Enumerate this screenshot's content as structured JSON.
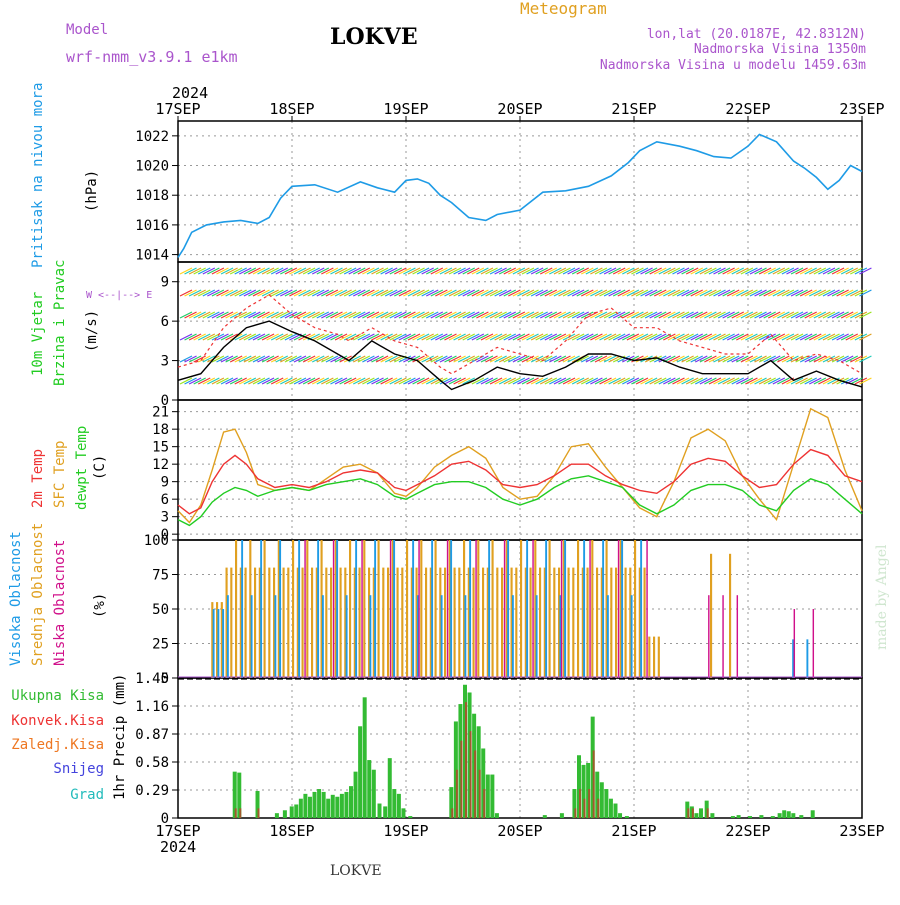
{
  "header": {
    "model_label": "Model",
    "model_name": "wrf-nmm_v3.9.1 e1km",
    "station": "LOKVE",
    "title": "Meteogram",
    "coords": "lon,lat (20.0187E, 42.8312N)",
    "altitude": "Nadmorska Visina 1350m",
    "model_altitude": "Nadmorska Visina u modelu 1459.63m",
    "year": "2024",
    "footer_station": "LOKVE",
    "credit": "made by Angel"
  },
  "date_ticks": [
    "17SEP",
    "18SEP",
    "19SEP",
    "20SEP",
    "21SEP",
    "22SEP",
    "23SEP"
  ],
  "colors": {
    "pressure": "#1e9be6",
    "wind_label": "#22cc22",
    "wind_speed_line": "#000000",
    "gust": "#ee3333",
    "temp2m": "#ee3333",
    "sfc": "#e0a020",
    "dewpt": "#22cc22",
    "cloud_high": "#1e9be6",
    "cloud_mid": "#e0a020",
    "cloud_low": "#d0108a",
    "precip_total": "#33bb33",
    "precip_conv": "#ee3333",
    "precip_frz": "#ee7722",
    "snow": "#4444dd",
    "hail": "#22bbbb",
    "purple_text": "#aa55cc"
  },
  "labels": {
    "pressure": {
      "name": "Pritisak na nivou mora",
      "unit": "(hPa)"
    },
    "wind": {
      "name1": "10m Vjetar",
      "name2": "Brzina i Pravac",
      "unit": "(m/s)",
      "compass": "W <--|--> E"
    },
    "temp": {
      "name1": "2m Temp",
      "name2": "SFC Temp",
      "name3": "dewpt Temp",
      "unit": "(C)"
    },
    "cloud": {
      "name1": "Visoka Oblacnost",
      "name2": "Srednja Oblacnost",
      "name3": "Niska Oblacnost",
      "unit": "(%)"
    },
    "precip": {
      "total": "Ukupna Kisa",
      "conv": "Konvek.Kisa",
      "frz": "Zaledj.Kisa",
      "snow": "Snijeg",
      "hail": "Grad",
      "unit": "1hr Precip (mm)"
    }
  },
  "chart_data": [
    {
      "type": "line",
      "panel": "pressure",
      "ylabel": "Pritisak na nivou mora (hPa)",
      "ylim": [
        1013.5,
        1023
      ],
      "yticks": [
        "1014",
        "1016",
        "1018",
        "1020",
        "1022"
      ],
      "x_days": [
        0,
        0.05,
        0.12,
        0.25,
        0.4,
        0.55,
        0.7,
        0.8,
        0.9,
        1.0,
        1.2,
        1.4,
        1.6,
        1.75,
        1.9,
        2.0,
        2.1,
        2.2,
        2.3,
        2.4,
        2.55,
        2.7,
        2.8,
        3.0,
        3.2,
        3.4,
        3.6,
        3.8,
        3.95,
        4.05,
        4.2,
        4.4,
        4.55,
        4.7,
        4.85,
        5.0,
        5.1,
        5.25,
        5.4,
        5.5,
        5.6,
        5.7,
        5.8,
        5.9,
        6.0
      ],
      "series": [
        {
          "values": [
            1013.8,
            1014.4,
            1015.5,
            1016.0,
            1016.2,
            1016.3,
            1016.1,
            1016.5,
            1017.8,
            1018.6,
            1018.7,
            1018.2,
            1018.9,
            1018.5,
            1018.2,
            1019.0,
            1019.1,
            1018.8,
            1018.0,
            1017.5,
            1016.5,
            1016.3,
            1016.7,
            1017.0,
            1018.2,
            1018.3,
            1018.6,
            1019.3,
            1020.2,
            1021.0,
            1021.6,
            1021.3,
            1021.0,
            1020.6,
            1020.5,
            1021.3,
            1022.1,
            1021.6,
            1020.3,
            1019.8,
            1019.2,
            1018.4,
            1019.0,
            1020.0,
            1019.6
          ]
        }
      ]
    },
    {
      "type": "line",
      "panel": "wind",
      "ylabel": "10m Vjetar Brzina i Pravac (m/s)",
      "ylim": [
        0,
        10.5
      ],
      "yticks": [
        "0",
        "3",
        "6",
        "9"
      ],
      "x_days": [
        0,
        0.2,
        0.4,
        0.6,
        0.8,
        1.0,
        1.2,
        1.4,
        1.5,
        1.7,
        1.9,
        2.1,
        2.3,
        2.4,
        2.6,
        2.8,
        3.0,
        3.2,
        3.4,
        3.6,
        3.8,
        4.0,
        4.2,
        4.4,
        4.6,
        4.8,
        5.0,
        5.2,
        5.4,
        5.6,
        5.8,
        6.0
      ],
      "series": [
        {
          "values": [
            1.5,
            2.0,
            4.0,
            5.5,
            6.0,
            5.2,
            4.5,
            3.5,
            3.0,
            4.5,
            3.5,
            3.0,
            1.5,
            0.8,
            1.5,
            2.5,
            2.0,
            1.8,
            2.5,
            3.5,
            3.5,
            3.0,
            3.2,
            2.5,
            2.0,
            2.0,
            2.0,
            3.0,
            1.5,
            2.2,
            1.5,
            1.0
          ]
        },
        {
          "values": [
            2.5,
            3.0,
            5.5,
            7.0,
            8.0,
            6.5,
            5.5,
            5.0,
            4.5,
            5.5,
            4.5,
            4.0,
            2.5,
            2.0,
            3.0,
            4.0,
            3.5,
            3.0,
            4.5,
            6.5,
            7.0,
            5.5,
            5.5,
            4.5,
            4.0,
            3.5,
            3.5,
            5.0,
            3.0,
            3.5,
            3.0,
            2.0
          ]
        }
      ]
    },
    {
      "type": "line",
      "panel": "temperature",
      "ylabel": "(C)",
      "ylim": [
        -1,
        23
      ],
      "yticks": [
        "0",
        "3",
        "6",
        "9",
        "12",
        "15",
        "18",
        "21"
      ],
      "x_days": [
        0,
        0.1,
        0.2,
        0.3,
        0.4,
        0.5,
        0.6,
        0.7,
        0.85,
        1.0,
        1.15,
        1.3,
        1.45,
        1.6,
        1.75,
        1.9,
        2.0,
        2.1,
        2.25,
        2.4,
        2.55,
        2.7,
        2.85,
        3.0,
        3.15,
        3.3,
        3.45,
        3.6,
        3.75,
        3.9,
        4.05,
        4.2,
        4.35,
        4.5,
        4.65,
        4.8,
        4.95,
        5.1,
        5.25,
        5.4,
        5.55,
        5.7,
        5.85,
        6.0
      ],
      "series": [
        {
          "values": [
            5.0,
            3.5,
            4.5,
            9.0,
            12.0,
            13.5,
            12.0,
            9.5,
            8.0,
            8.5,
            8.0,
            9.0,
            10.5,
            11.0,
            10.5,
            8.0,
            7.5,
            8.5,
            10.0,
            12.0,
            12.5,
            11.0,
            8.5,
            8.0,
            8.5,
            10.0,
            12.0,
            12.0,
            10.0,
            8.5,
            7.5,
            7.0,
            9.0,
            12.0,
            13.0,
            12.5,
            10.0,
            8.0,
            8.5,
            12.0,
            14.5,
            13.5,
            10.0,
            9.0
          ]
        },
        {
          "values": [
            4.0,
            2.0,
            5.0,
            11.0,
            17.5,
            18.0,
            14.0,
            8.5,
            7.5,
            8.0,
            7.5,
            9.5,
            11.5,
            12.0,
            10.5,
            7.0,
            6.5,
            8.0,
            11.5,
            13.5,
            15.0,
            13.0,
            8.0,
            6.0,
            6.5,
            10.0,
            15.0,
            15.5,
            11.5,
            8.0,
            4.5,
            3.0,
            9.0,
            16.5,
            18.0,
            16.0,
            10.0,
            6.0,
            2.5,
            12.0,
            21.5,
            20.0,
            11.0,
            4.0
          ]
        },
        {
          "values": [
            2.5,
            1.5,
            3.0,
            5.5,
            7.0,
            8.0,
            7.5,
            6.5,
            7.5,
            8.0,
            7.5,
            8.5,
            9.0,
            9.5,
            8.5,
            6.5,
            6.0,
            7.0,
            8.5,
            9.0,
            9.0,
            8.0,
            6.0,
            5.0,
            6.0,
            8.0,
            9.5,
            10.0,
            9.0,
            8.0,
            5.0,
            3.5,
            5.0,
            7.5,
            8.5,
            8.5,
            7.5,
            5.0,
            4.0,
            7.5,
            9.5,
            8.5,
            6.0,
            3.5
          ]
        }
      ]
    },
    {
      "type": "bar",
      "panel": "cloud",
      "ylabel": "(%)",
      "ylim": [
        0,
        100
      ],
      "yticks": [
        "0",
        "25",
        "50",
        "75",
        "100"
      ],
      "series": [
        {
          "values": []
        },
        {
          "values": []
        },
        {
          "values": []
        }
      ]
    },
    {
      "type": "bar",
      "panel": "precipitation",
      "ylabel": "1hr Precip (mm)",
      "ylim": [
        0,
        1.45
      ],
      "yticks": [
        "0",
        "0.29",
        "0.58",
        "0.87",
        "1.16",
        "1.45"
      ],
      "bars": [
        [
          0.48,
          0.48,
          0.1
        ],
        [
          0.52,
          0.47,
          0.1
        ],
        [
          0.68,
          0.28,
          0.1
        ],
        [
          0.85,
          0.05,
          0
        ],
        [
          0.92,
          0.08,
          0
        ],
        [
          0.98,
          0.12,
          0
        ],
        [
          1.02,
          0.14,
          0
        ],
        [
          1.06,
          0.2,
          0
        ],
        [
          1.1,
          0.25,
          0
        ],
        [
          1.14,
          0.22,
          0
        ],
        [
          1.18,
          0.27,
          0
        ],
        [
          1.22,
          0.3,
          0
        ],
        [
          1.26,
          0.27,
          0
        ],
        [
          1.3,
          0.2,
          0
        ],
        [
          1.34,
          0.24,
          0
        ],
        [
          1.38,
          0.22,
          0
        ],
        [
          1.42,
          0.25,
          0
        ],
        [
          1.46,
          0.27,
          0
        ],
        [
          1.5,
          0.33,
          0
        ],
        [
          1.54,
          0.48,
          0
        ],
        [
          1.58,
          0.95,
          0
        ],
        [
          1.62,
          1.25,
          0
        ],
        [
          1.66,
          0.6,
          0
        ],
        [
          1.7,
          0.5,
          0
        ],
        [
          1.75,
          0.15,
          0
        ],
        [
          1.8,
          0.12,
          0
        ],
        [
          1.84,
          0.62,
          0
        ],
        [
          1.88,
          0.3,
          0
        ],
        [
          1.92,
          0.25,
          0
        ],
        [
          1.96,
          0.1,
          0
        ],
        [
          2.02,
          0.02,
          0
        ],
        [
          2.38,
          0.32,
          0.1
        ],
        [
          2.42,
          1.0,
          0.5
        ],
        [
          2.46,
          1.18,
          0.8
        ],
        [
          2.5,
          1.38,
          1.2
        ],
        [
          2.54,
          1.3,
          0.9
        ],
        [
          2.58,
          1.08,
          0.7
        ],
        [
          2.62,
          0.95,
          0.5
        ],
        [
          2.66,
          0.72,
          0.3
        ],
        [
          2.7,
          0.45,
          0
        ],
        [
          2.74,
          0.45,
          0
        ],
        [
          2.78,
          0.05,
          0
        ],
        [
          3.2,
          0.03,
          0
        ],
        [
          3.35,
          0.05,
          0
        ],
        [
          3.46,
          0.3,
          0.1
        ],
        [
          3.5,
          0.65,
          0.3
        ],
        [
          3.54,
          0.55,
          0.2
        ],
        [
          3.58,
          0.57,
          0.3
        ],
        [
          3.62,
          1.05,
          0.7
        ],
        [
          3.66,
          0.48,
          0.2
        ],
        [
          3.7,
          0.37,
          0
        ],
        [
          3.74,
          0.3,
          0
        ],
        [
          3.78,
          0.2,
          0
        ],
        [
          3.82,
          0.15,
          0
        ],
        [
          3.86,
          0.05,
          0
        ],
        [
          3.92,
          0.02,
          0
        ],
        [
          4.45,
          0.17,
          0.1
        ],
        [
          4.49,
          0.12,
          0.1
        ],
        [
          4.53,
          0.05,
          0
        ],
        [
          4.57,
          0.1,
          0
        ],
        [
          4.62,
          0.18,
          0.1
        ],
        [
          4.67,
          0.05,
          0
        ],
        [
          4.85,
          0.02,
          0
        ],
        [
          4.9,
          0.03,
          0
        ],
        [
          5.0,
          0.02,
          0
        ],
        [
          5.1,
          0.03,
          0
        ],
        [
          5.2,
          0.02,
          0
        ],
        [
          5.26,
          0.05,
          0
        ],
        [
          5.3,
          0.08,
          0
        ],
        [
          5.34,
          0.07,
          0
        ],
        [
          5.38,
          0.05,
          0
        ],
        [
          5.45,
          0.03,
          0
        ],
        [
          5.55,
          0.08,
          0
        ]
      ]
    }
  ]
}
